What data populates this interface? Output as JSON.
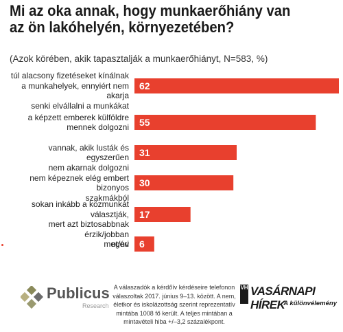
{
  "chart_data": {
    "type": "bar",
    "orientation": "horizontal",
    "title": "Mi az oka annak, hogy munkaerőhiány van\naz ön lakóhelyén, környezetében?",
    "subtitle": "(Azok körében, akik tapasztalják a munkaerőhiányt, N=583, %)",
    "categories": [
      [
        "túl alacsony fizetéseket kínálnak",
        "a munkahelyek, ennyiért nem akarja",
        "senki elvállalni a munkákat"
      ],
      [
        "a képzett emberek külföldre",
        "mennek dolgozni"
      ],
      [
        "vannak, akik lusták és egyszerűen",
        "nem akarnak dolgozni"
      ],
      [
        "nem képeznek elég embert bizonyos",
        "szakmákból"
      ],
      [
        "sokan inkább a közmunkát választják,",
        "mert azt biztosabbnak érzik/jobban",
        "megéri"
      ],
      [
        "nt/nv"
      ]
    ],
    "values": [
      62,
      55,
      31,
      30,
      17,
      6
    ],
    "value_labels": [
      "62",
      "55",
      "31",
      "30",
      "17",
      "6"
    ],
    "bar_color": "#e8402e",
    "xlim": [
      0,
      62
    ],
    "grid": false
  },
  "footer": {
    "publicus": {
      "name": "Publicus",
      "sub": "Research"
    },
    "note": "A válaszadók a kérdőív kérdéseire telefonon válaszoltak 2017. június 9–13. között. A nem, életkor és iskolázottság szerint reprezentatív mintába 1008 fő került. A teljes mintában a mintavételi hiba +/–3,2 százalékpont.",
    "vh": {
      "badge": "VH",
      "title": "VASÁRNAPI HÍREK",
      "sub": "A különvélemény"
    }
  }
}
